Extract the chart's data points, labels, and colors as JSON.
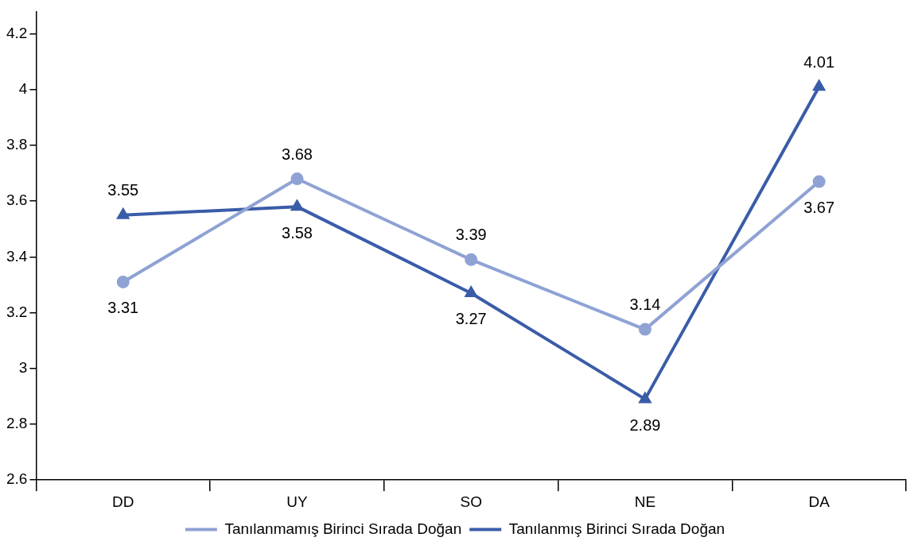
{
  "chart_data": {
    "type": "line",
    "categories": [
      "DD",
      "UY",
      "SO",
      "NE",
      "DA"
    ],
    "series": [
      {
        "name": "Tanılanmamış Birinci Sırada Doğan",
        "color": "#8fa2d4",
        "marker": "circle",
        "values": [
          3.31,
          3.68,
          3.39,
          3.14,
          3.67
        ]
      },
      {
        "name": "Tanılanmış Birinci Sırada Doğan",
        "color": "#3a5ca8",
        "marker": "triangle",
        "values": [
          3.55,
          3.58,
          3.27,
          2.89,
          4.01
        ]
      }
    ],
    "ylim": [
      2.6,
      4.28
    ],
    "yticks": [
      2.6,
      2.8,
      3,
      3.2,
      3.4,
      3.6,
      3.8,
      4,
      4.2
    ],
    "grid": false,
    "legend": "bottom",
    "data_labels": true,
    "line_style": "solid"
  }
}
